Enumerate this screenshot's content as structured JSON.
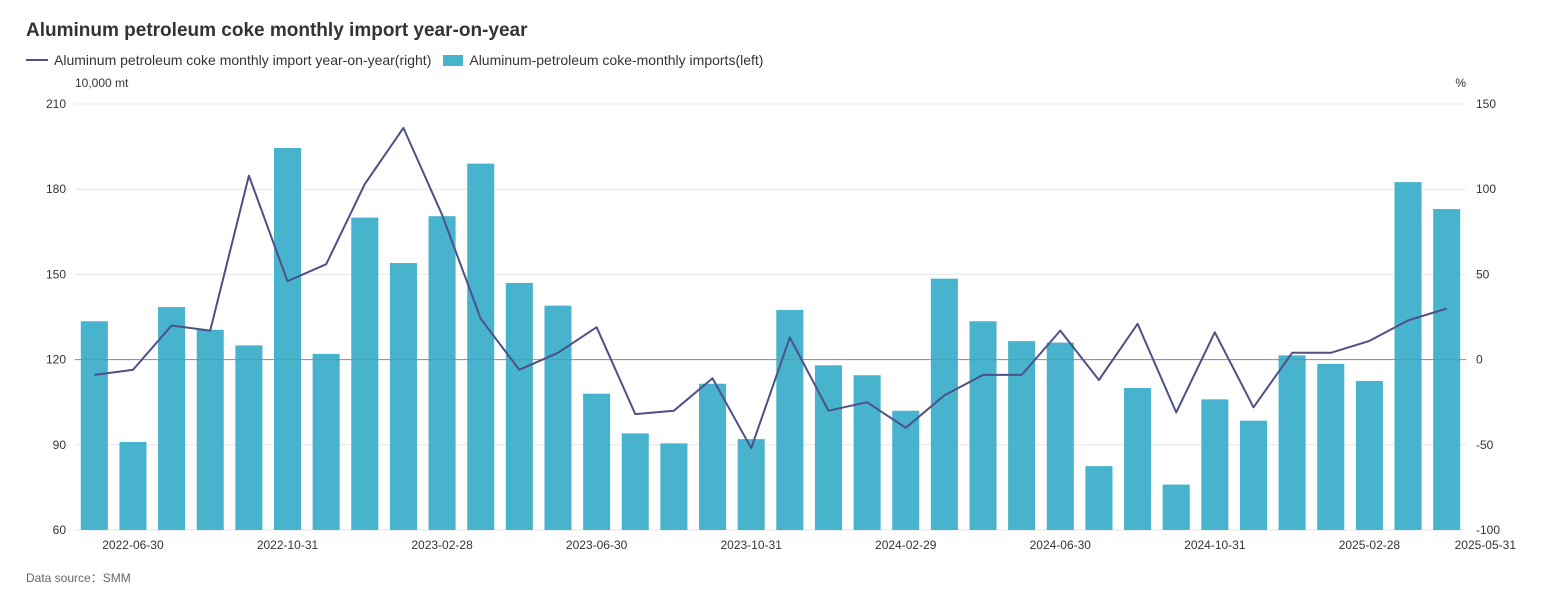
{
  "title": "Aluminum petroleum coke monthly import year-on-year",
  "source": "Data source：SMM",
  "colors": {
    "bar": "#47b3cc",
    "line": "#4e5088",
    "grid": "#e6e6e6",
    "zero": "#888888"
  },
  "chart_data": {
    "type": "bar",
    "left_unit": "10,000 mt",
    "right_unit": "%",
    "left_axis": {
      "min": 60,
      "max": 210,
      "ticks": [
        60,
        90,
        120,
        150,
        180,
        210
      ]
    },
    "right_axis": {
      "min": -100,
      "max": 150,
      "ticks": [
        -100,
        -50,
        0,
        50,
        100,
        150
      ]
    },
    "x_tick_labels": [
      {
        "index": 1,
        "label": "2022-06-30"
      },
      {
        "index": 5,
        "label": "2022-10-31"
      },
      {
        "index": 9,
        "label": "2023-02-28"
      },
      {
        "index": 13,
        "label": "2023-06-30"
      },
      {
        "index": 17,
        "label": "2023-10-31"
      },
      {
        "index": 21,
        "label": "2024-02-29"
      },
      {
        "index": 25,
        "label": "2024-06-30"
      },
      {
        "index": 29,
        "label": "2024-10-31"
      },
      {
        "index": 33,
        "label": "2025-02-28"
      },
      {
        "index": 36,
        "label": "2025-05-31"
      }
    ],
    "series": [
      {
        "name": "Aluminum-petroleum coke-monthly imports(left)",
        "type": "bar",
        "axis": "left",
        "values": [
          133.5,
          91,
          138.5,
          130.5,
          125,
          194.5,
          122,
          170,
          154,
          170.5,
          189,
          147,
          139,
          108,
          94,
          90.5,
          111.5,
          92,
          137.5,
          118,
          114.5,
          102,
          148.5,
          133.5,
          126.5,
          126,
          82.5,
          110,
          76,
          106,
          98.5,
          121.5,
          118.5,
          112.5,
          182.5,
          173
        ]
      },
      {
        "name": "Aluminum petroleum coke monthly import year-on-year(right)",
        "type": "line",
        "axis": "right",
        "values": [
          -9,
          -6,
          20,
          17,
          108,
          46,
          56,
          103,
          136,
          85,
          24,
          -6,
          4,
          19,
          -32,
          -30,
          -11,
          -52,
          13,
          -30,
          -25,
          -40,
          -21,
          -9,
          -9,
          17,
          -12,
          21,
          -31,
          16,
          -28,
          4,
          4,
          11,
          23,
          30
        ]
      }
    ]
  }
}
